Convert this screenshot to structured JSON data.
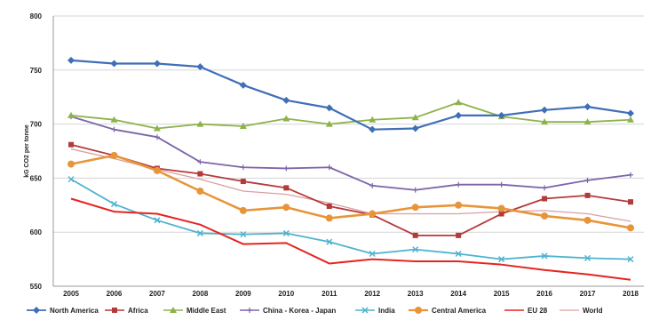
{
  "chart_data": {
    "type": "line",
    "title": "",
    "ylabel": "kG CO2 per tonne",
    "xlabel": "",
    "ylim": [
      550,
      800
    ],
    "yticks": [
      550,
      600,
      650,
      700,
      750,
      800
    ],
    "grid": "horizontal",
    "legend": "bottom",
    "categories": [
      "2005",
      "2006",
      "2007",
      "2008",
      "2009",
      "2010",
      "2011",
      "2012",
      "2013",
      "2014",
      "2015",
      "2016",
      "2017",
      "2018"
    ],
    "series": [
      {
        "name": "North America",
        "color": "#3f6fb6",
        "marker": "diamond",
        "width": 2.2,
        "values": [
          759,
          756,
          756,
          753,
          736,
          722,
          715,
          695,
          696,
          708,
          708,
          713,
          716,
          710
        ]
      },
      {
        "name": "Africa",
        "color": "#b43a3a",
        "marker": "square",
        "width": 1.8,
        "values": [
          681,
          671,
          659,
          654,
          647,
          641,
          624,
          616,
          597,
          597,
          617,
          631,
          634,
          628
        ]
      },
      {
        "name": "Middle East",
        "color": "#8db24a",
        "marker": "triangle",
        "width": 1.8,
        "values": [
          708,
          704,
          696,
          700,
          698,
          705,
          700,
          704,
          706,
          720,
          707,
          702,
          702,
          704
        ]
      },
      {
        "name": "China - Korea - Japan",
        "color": "#7b65a8",
        "marker": "cross",
        "width": 1.8,
        "values": [
          707,
          695,
          688,
          665,
          660,
          659,
          660,
          643,
          639,
          644,
          644,
          641,
          648,
          653
        ]
      },
      {
        "name": "India",
        "color": "#4fb3cf",
        "marker": "x",
        "width": 1.8,
        "values": [
          649,
          626,
          611,
          599,
          598,
          599,
          591,
          580,
          584,
          580,
          575,
          578,
          576,
          575
        ]
      },
      {
        "name": "Central America",
        "color": "#e8953a",
        "marker": "circle",
        "width": 2.6,
        "values": [
          663,
          671,
          657,
          638,
          620,
          623,
          613,
          617,
          623,
          625,
          622,
          615,
          611,
          604
        ]
      },
      {
        "name": "EU 28",
        "color": "#e52521",
        "marker": "none",
        "width": 2.0,
        "values": [
          631,
          619,
          617,
          607,
          589,
          590,
          571,
          575,
          573,
          573,
          570,
          565,
          561,
          556
        ]
      },
      {
        "name": "World",
        "color": "#d9a0a0",
        "marker": "none",
        "width": 1.3,
        "values": [
          677,
          668,
          658,
          649,
          638,
          635,
          627,
          617,
          617,
          617,
          619,
          620,
          617,
          610
        ]
      }
    ]
  }
}
